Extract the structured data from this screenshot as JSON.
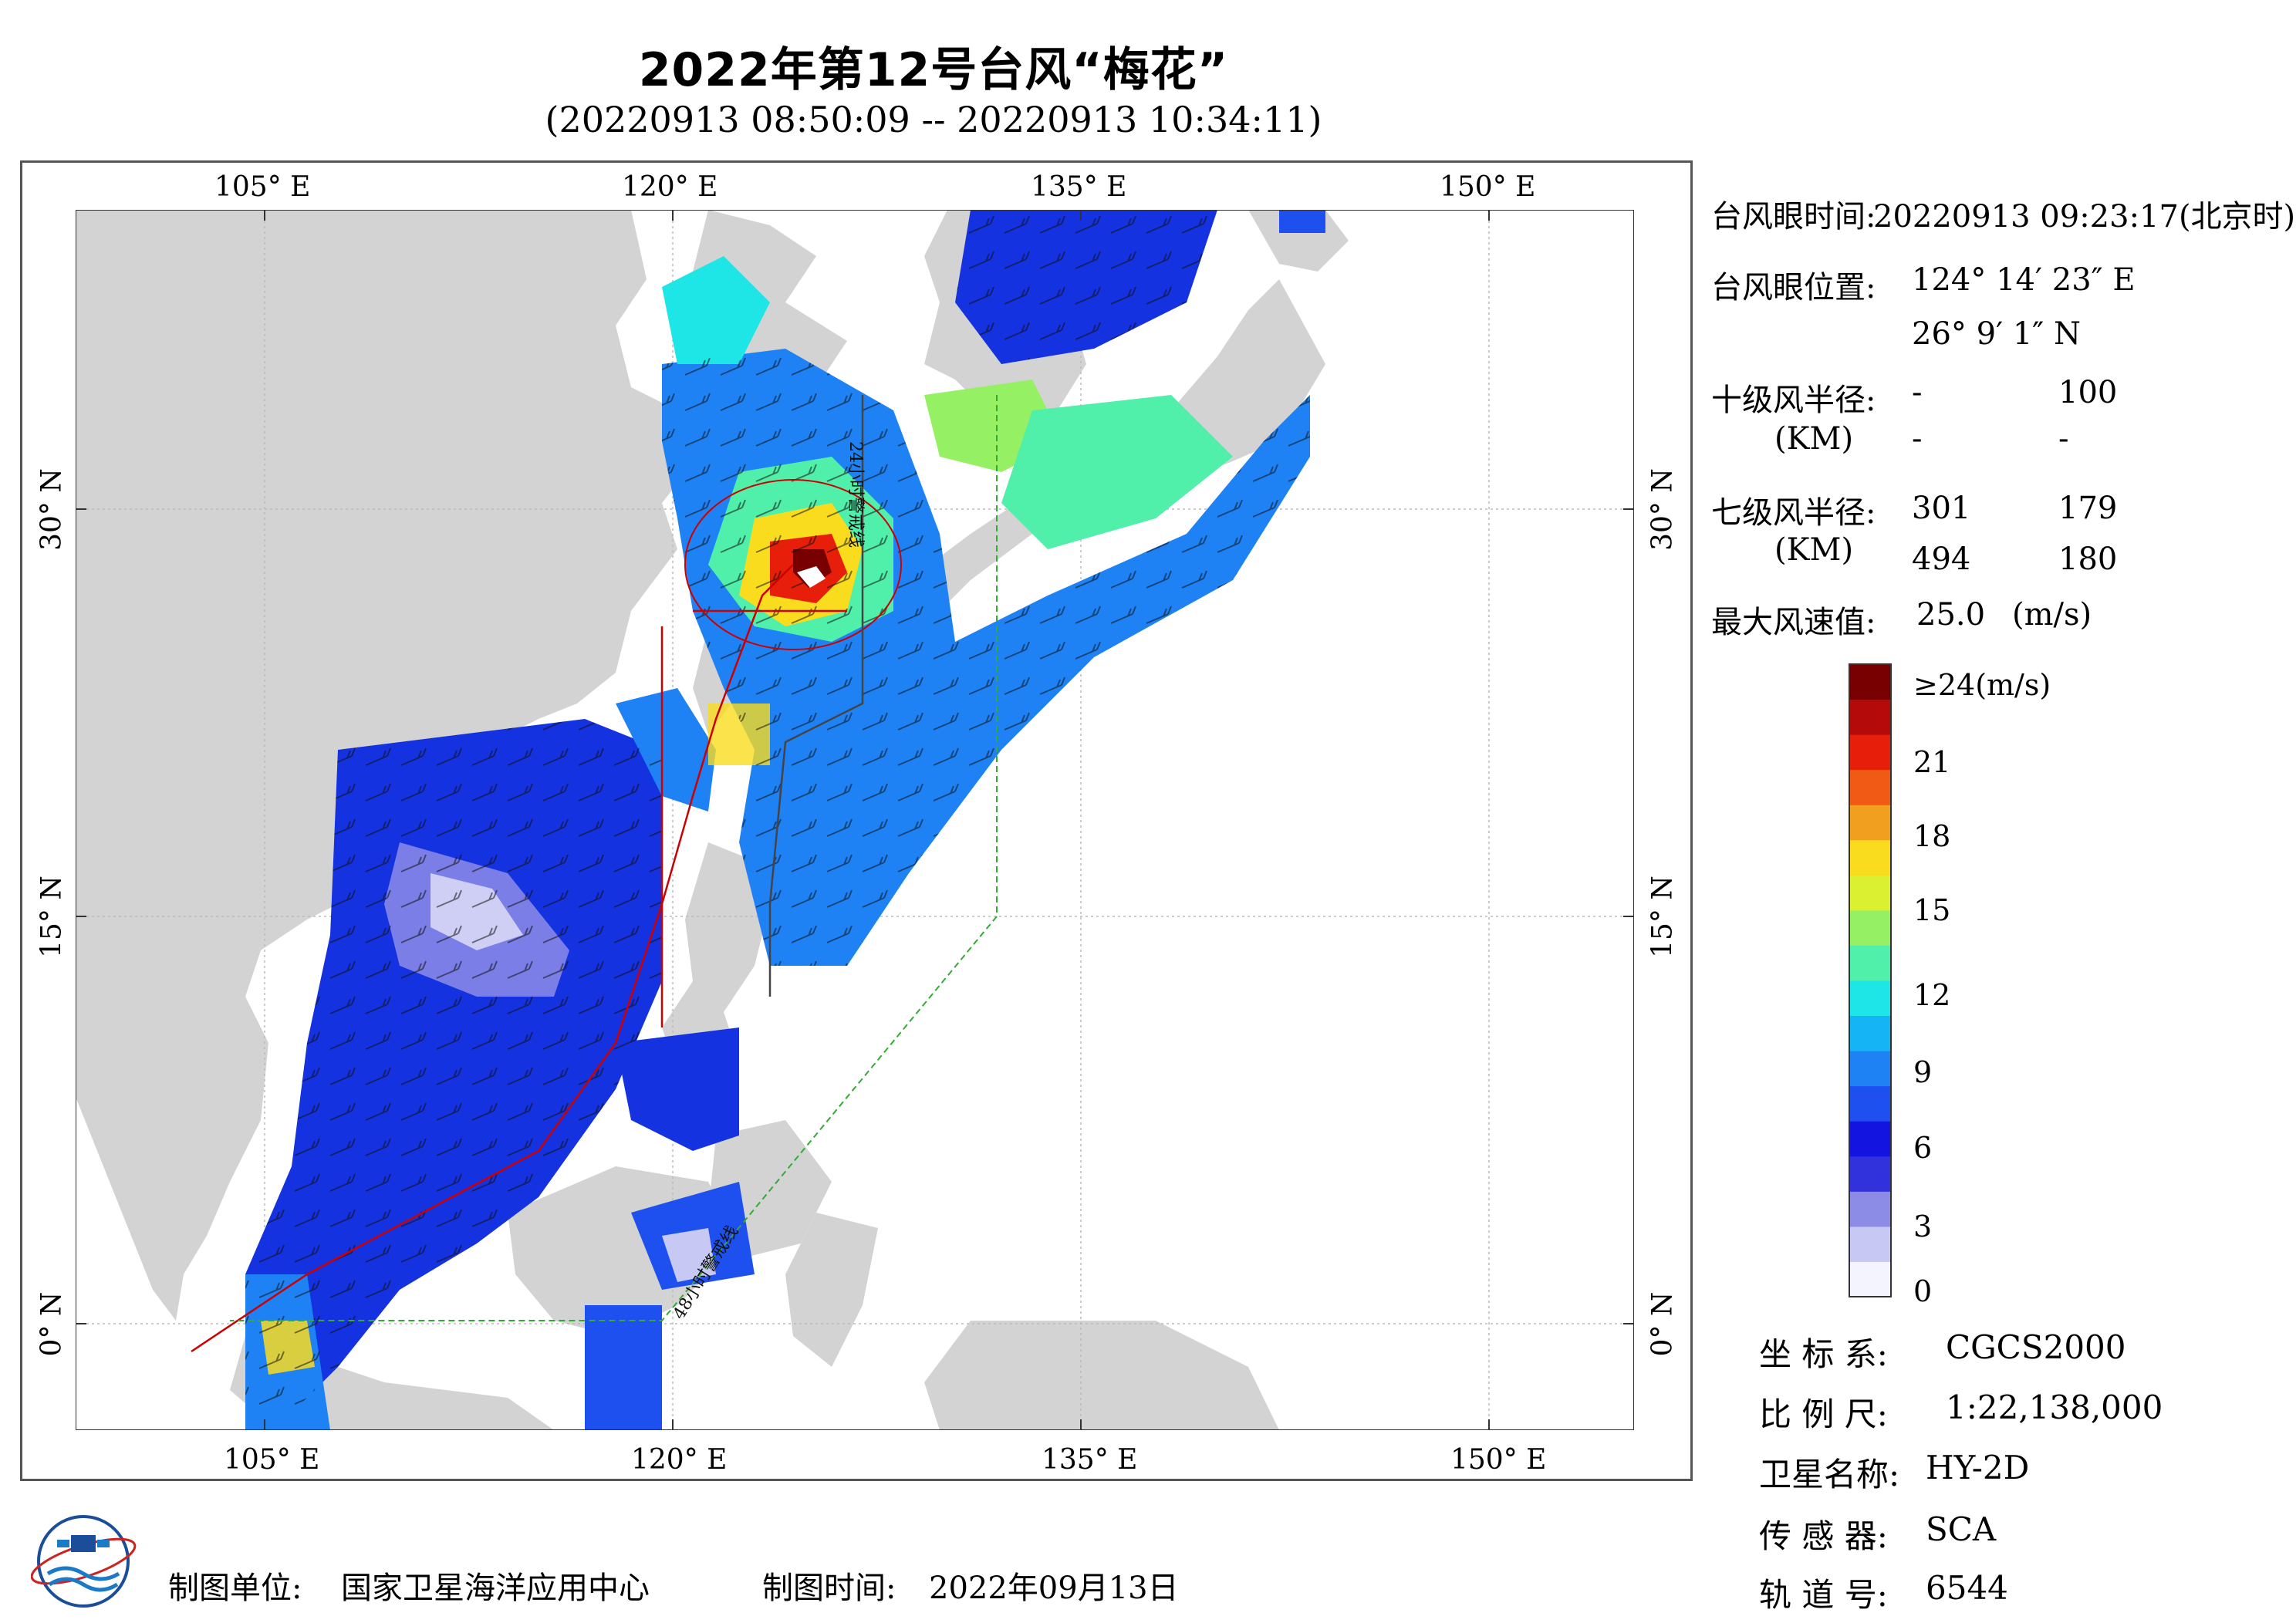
{
  "title": "2022年第12号台风“梅花”",
  "subtitle": "(20220913 08:50:09 -- 20220913 10:34:11)",
  "axes": {
    "lon_ticks": [
      "105° E",
      "120° E",
      "135° E",
      "150° E"
    ],
    "lat_ticks": [
      "30° N",
      "15° N",
      "0° N"
    ]
  },
  "map_labels": {
    "warning_24h": "24小时警戒线",
    "warning_48h": "48小时警戒线"
  },
  "info": {
    "eye_time_label": "台风眼时间:",
    "eye_time_value": "20220913 09:23:17(北京时)",
    "eye_pos_label": "台风眼位置:",
    "eye_lon": "124° 14′ 23″ E",
    "eye_lat": "26° 9′ 1″ N",
    "r10_label": "十级风半径:",
    "r10_unit": "(KM)",
    "r10_row1": [
      "-",
      "100"
    ],
    "r10_row2": [
      "-",
      "-"
    ],
    "r7_label": "七级风半径:",
    "r7_unit": "(KM)",
    "r7_row1": [
      "301",
      "179"
    ],
    "r7_row2": [
      "494",
      "180"
    ],
    "max_wind_label": "最大风速值:",
    "max_wind_value": "25.0",
    "max_wind_unit": "(m/s)"
  },
  "colorbar": {
    "ticks": [
      "≥24(m/s)",
      "21",
      "18",
      "15",
      "12",
      "9",
      "6",
      "3",
      "0"
    ],
    "colors": [
      "#f4f4ff",
      "#c8c8f4",
      "#8c8ce6",
      "#3232dc",
      "#1414e0",
      "#1e50f0",
      "#1e82f5",
      "#14b4f5",
      "#1ee6e6",
      "#50f0aa",
      "#96f064",
      "#dcf032",
      "#fadc1e",
      "#f0a01e",
      "#f05a14",
      "#e61e0a",
      "#b40a0a",
      "#780000"
    ]
  },
  "meta": {
    "crs_label": "坐 标 系:",
    "crs_value": "CGCS2000",
    "scale_label": "比 例 尺:",
    "scale_value": "1:22,138,000",
    "sat_label": "卫星名称:",
    "sat_value": "HY-2D",
    "sensor_label": "传 感 器:",
    "sensor_value": "SCA",
    "orbit_label": "轨 道 号:",
    "orbit_value": "6544"
  },
  "footer": {
    "org_label": "制图单位:",
    "org_value": "国家卫星海洋应用中心",
    "date_label": "制图时间:",
    "date_value": "2022年09月13日"
  },
  "colors": {
    "land": "#d3d3d3",
    "sea": "#ffffff",
    "track": "#cc0000",
    "warning_24h": "#444444",
    "warning_48h": "#33aa33"
  }
}
